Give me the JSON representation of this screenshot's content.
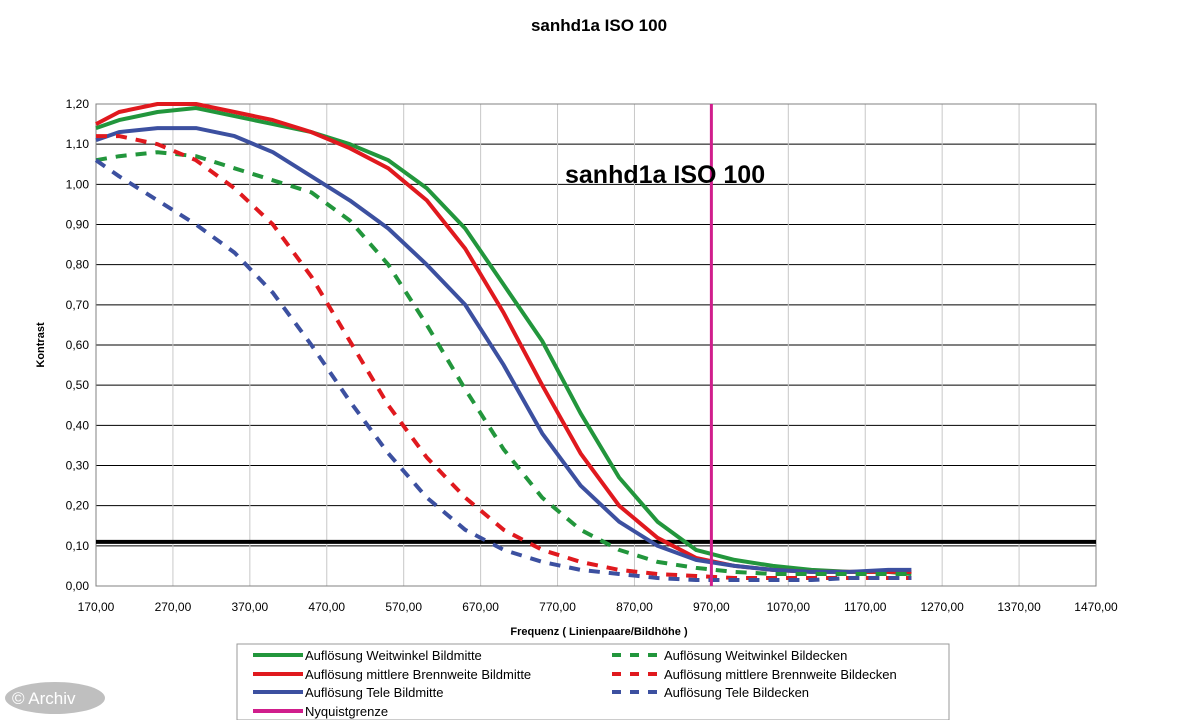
{
  "watermark": "© Archiv",
  "chart_data": {
    "type": "line",
    "title": "sanhd1a ISO 100",
    "annotation": "sanhd1a ISO 100",
    "xlabel": "Frequenz ( Linienpaare/Bildhöhe )",
    "ylabel": "Kontrast",
    "xlim": [
      170,
      1470
    ],
    "ylim": [
      0,
      1.2
    ],
    "x_ticks": [
      "170,00",
      "270,00",
      "370,00",
      "470,00",
      "570,00",
      "670,00",
      "770,00",
      "870,00",
      "970,00",
      "1070,00",
      "1170,00",
      "1270,00",
      "1370,00",
      "1470,00"
    ],
    "y_ticks": [
      "0,00",
      "0,10",
      "0,20",
      "0,30",
      "0,40",
      "0,50",
      "0,60",
      "0,70",
      "0,80",
      "0,90",
      "1,00",
      "1,10",
      "1,20"
    ],
    "grid": "horizontal",
    "legend_position": "bottom",
    "reference_lines": [
      {
        "orientation": "horizontal",
        "y": 0.11,
        "color": "#000000"
      }
    ],
    "series": [
      {
        "name": "Auflösung Weitwinkel Bildmitte",
        "color": "#22963c",
        "dash": "solid",
        "x": [
          170,
          200,
          250,
          300,
          350,
          400,
          450,
          500,
          550,
          600,
          650,
          700,
          750,
          800,
          850,
          900,
          950,
          1000,
          1050,
          1100,
          1150,
          1200,
          1230
        ],
        "y": [
          1.14,
          1.16,
          1.18,
          1.19,
          1.17,
          1.15,
          1.13,
          1.1,
          1.06,
          0.99,
          0.89,
          0.75,
          0.61,
          0.43,
          0.27,
          0.16,
          0.09,
          0.065,
          0.05,
          0.04,
          0.035,
          0.035,
          0.03
        ]
      },
      {
        "name": "Auflösung mittlere Brennweite Bildmitte",
        "color": "#e0191e",
        "dash": "solid",
        "x": [
          170,
          200,
          250,
          300,
          350,
          400,
          450,
          500,
          550,
          600,
          650,
          700,
          750,
          800,
          850,
          900,
          950,
          1000,
          1050,
          1100,
          1150,
          1200,
          1230
        ],
        "y": [
          1.15,
          1.18,
          1.2,
          1.2,
          1.18,
          1.16,
          1.13,
          1.09,
          1.04,
          0.96,
          0.84,
          0.68,
          0.5,
          0.33,
          0.2,
          0.12,
          0.07,
          0.05,
          0.04,
          0.035,
          0.035,
          0.035,
          0.035
        ]
      },
      {
        "name": "Auflösung Tele Bildmitte",
        "color": "#3c50a0",
        "dash": "solid",
        "x": [
          170,
          200,
          250,
          300,
          350,
          400,
          450,
          500,
          550,
          600,
          650,
          700,
          750,
          800,
          850,
          900,
          950,
          1000,
          1050,
          1100,
          1150,
          1200,
          1230
        ],
        "y": [
          1.11,
          1.13,
          1.14,
          1.14,
          1.12,
          1.08,
          1.02,
          0.96,
          0.89,
          0.8,
          0.7,
          0.55,
          0.38,
          0.25,
          0.16,
          0.1,
          0.065,
          0.05,
          0.04,
          0.035,
          0.035,
          0.04,
          0.04
        ]
      },
      {
        "name": "Auflösung Weitwinkel Bildecken",
        "color": "#22963c",
        "dash": "dashed",
        "x": [
          170,
          200,
          250,
          300,
          350,
          400,
          450,
          500,
          550,
          600,
          650,
          700,
          750,
          800,
          850,
          900,
          950,
          1000,
          1050,
          1100,
          1150,
          1200,
          1230
        ],
        "y": [
          1.06,
          1.07,
          1.08,
          1.07,
          1.04,
          1.01,
          0.98,
          0.91,
          0.8,
          0.65,
          0.49,
          0.34,
          0.22,
          0.14,
          0.09,
          0.06,
          0.045,
          0.035,
          0.03,
          0.03,
          0.03,
          0.03,
          0.03
        ]
      },
      {
        "name": "Auflösung mittlere Brennweite Bildecken",
        "color": "#e0191e",
        "dash": "dashed",
        "x": [
          170,
          200,
          250,
          300,
          350,
          400,
          450,
          500,
          550,
          600,
          650,
          700,
          750,
          800,
          850,
          900,
          950,
          1000,
          1050,
          1100,
          1150,
          1200,
          1230
        ],
        "y": [
          1.12,
          1.12,
          1.1,
          1.06,
          0.99,
          0.9,
          0.77,
          0.61,
          0.45,
          0.32,
          0.22,
          0.14,
          0.09,
          0.06,
          0.04,
          0.03,
          0.025,
          0.02,
          0.02,
          0.02,
          0.02,
          0.02,
          0.02
        ]
      },
      {
        "name": "Auflösung Tele Bildecken",
        "color": "#3c50a0",
        "dash": "dashed",
        "x": [
          170,
          200,
          250,
          300,
          350,
          400,
          450,
          500,
          550,
          600,
          650,
          700,
          750,
          800,
          850,
          900,
          950,
          1000,
          1050,
          1100,
          1150,
          1200,
          1230
        ],
        "y": [
          1.06,
          1.02,
          0.96,
          0.9,
          0.83,
          0.73,
          0.6,
          0.46,
          0.33,
          0.22,
          0.14,
          0.09,
          0.06,
          0.04,
          0.03,
          0.02,
          0.015,
          0.015,
          0.015,
          0.015,
          0.02,
          0.02,
          0.02
        ]
      },
      {
        "name": "Nyquistgrenze",
        "color": "#d01e8c",
        "dash": "solid",
        "vertical_x": 970
      }
    ]
  }
}
